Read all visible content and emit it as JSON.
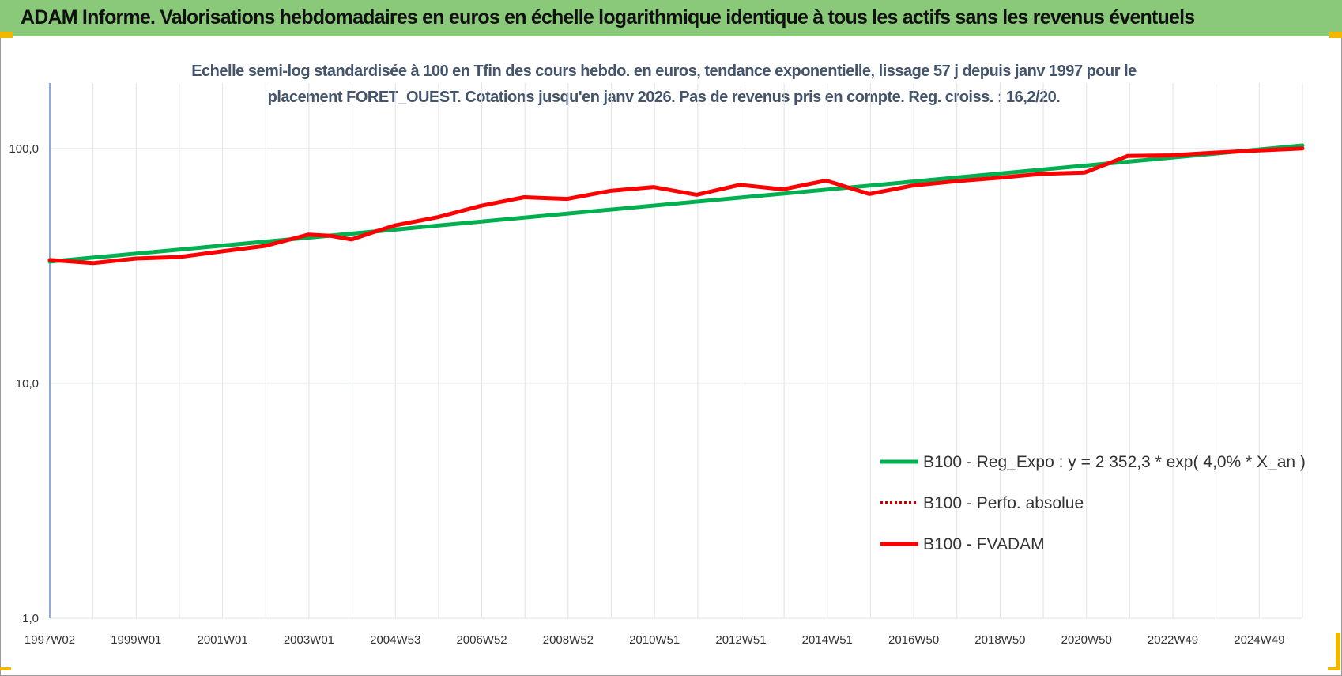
{
  "banner": {
    "title": "ADAM Informe. Valorisations hebdomadaires en euros en échelle logarithmique identique à tous les actifs sans les revenus éventuels"
  },
  "colors": {
    "banner_bg": "#8bc97a",
    "accent_corner": "#f2b800",
    "trend_line": "#00b050",
    "fvadam_line": "#ff0000",
    "perf_line": "#c00000",
    "grid": "#dde4ea",
    "axis": "#4472c4"
  },
  "chart_data": {
    "type": "line",
    "title": "Echelle semi-log standardisée à 100 en Tfin des cours hebdo. en euros, tendance exponentielle, lissage 57 j depuis janv 1997 pour le placement FORET_OUEST. Cotations jusqu'en janv 2026. Pas de revenus pris en compte. Reg. croiss. : 16,2/20.",
    "y_scale": "log",
    "ylim": [
      1,
      190
    ],
    "yticks": [
      1,
      10,
      100
    ],
    "ytick_labels": [
      "1,0",
      "10,0",
      "100,0"
    ],
    "xlim": [
      1997.0,
      2026.05
    ],
    "xtick_labels": [
      "1997W02",
      "1999W01",
      "2001W01",
      "2003W01",
      "2004W53",
      "2006W52",
      "2008W52",
      "2010W51",
      "2012W51",
      "2014W51",
      "2016W50",
      "2018W50",
      "2020W50",
      "2022W49",
      "2024W49"
    ],
    "grid": true,
    "legend_position": "lower-right",
    "series": [
      {
        "name": "B100 - Reg_Expo : y = 2 352,3 * exp( 4,0% *  X_an )",
        "style": "solid",
        "color": "#00b050",
        "x": [
          1997.0,
          2026.05
        ],
        "y": [
          33.0,
          103.0
        ]
      },
      {
        "name": "B100 - Perfo. absolue",
        "style": "dotted",
        "color": "#c00000",
        "x": [],
        "y": []
      },
      {
        "name": "B100 - FVADAM",
        "style": "solid",
        "color": "#ff0000",
        "x": [
          1997.0,
          1998.0,
          1999.0,
          2000.0,
          2001.0,
          2002.0,
          2003.0,
          2003.5,
          2004.0,
          2004.5,
          2005.0,
          2006.0,
          2007.0,
          2008.0,
          2009.0,
          2010.0,
          2011.0,
          2012.0,
          2013.0,
          2014.0,
          2015.0,
          2016.0,
          2017.0,
          2018.0,
          2019.0,
          2020.0,
          2021.0,
          2022.0,
          2023.0,
          2024.0,
          2025.0,
          2026.05
        ],
        "y": [
          33.5,
          32.5,
          34.0,
          34.5,
          36.5,
          38.5,
          43.0,
          42.5,
          41.0,
          44.0,
          47.0,
          51.0,
          57.0,
          62.0,
          61.0,
          66.0,
          68.5,
          63.5,
          70.0,
          67.0,
          73.0,
          64.0,
          69.5,
          72.5,
          75.0,
          78.0,
          79.0,
          93.0,
          93.5,
          96.0,
          98.0,
          100.0
        ]
      }
    ]
  }
}
